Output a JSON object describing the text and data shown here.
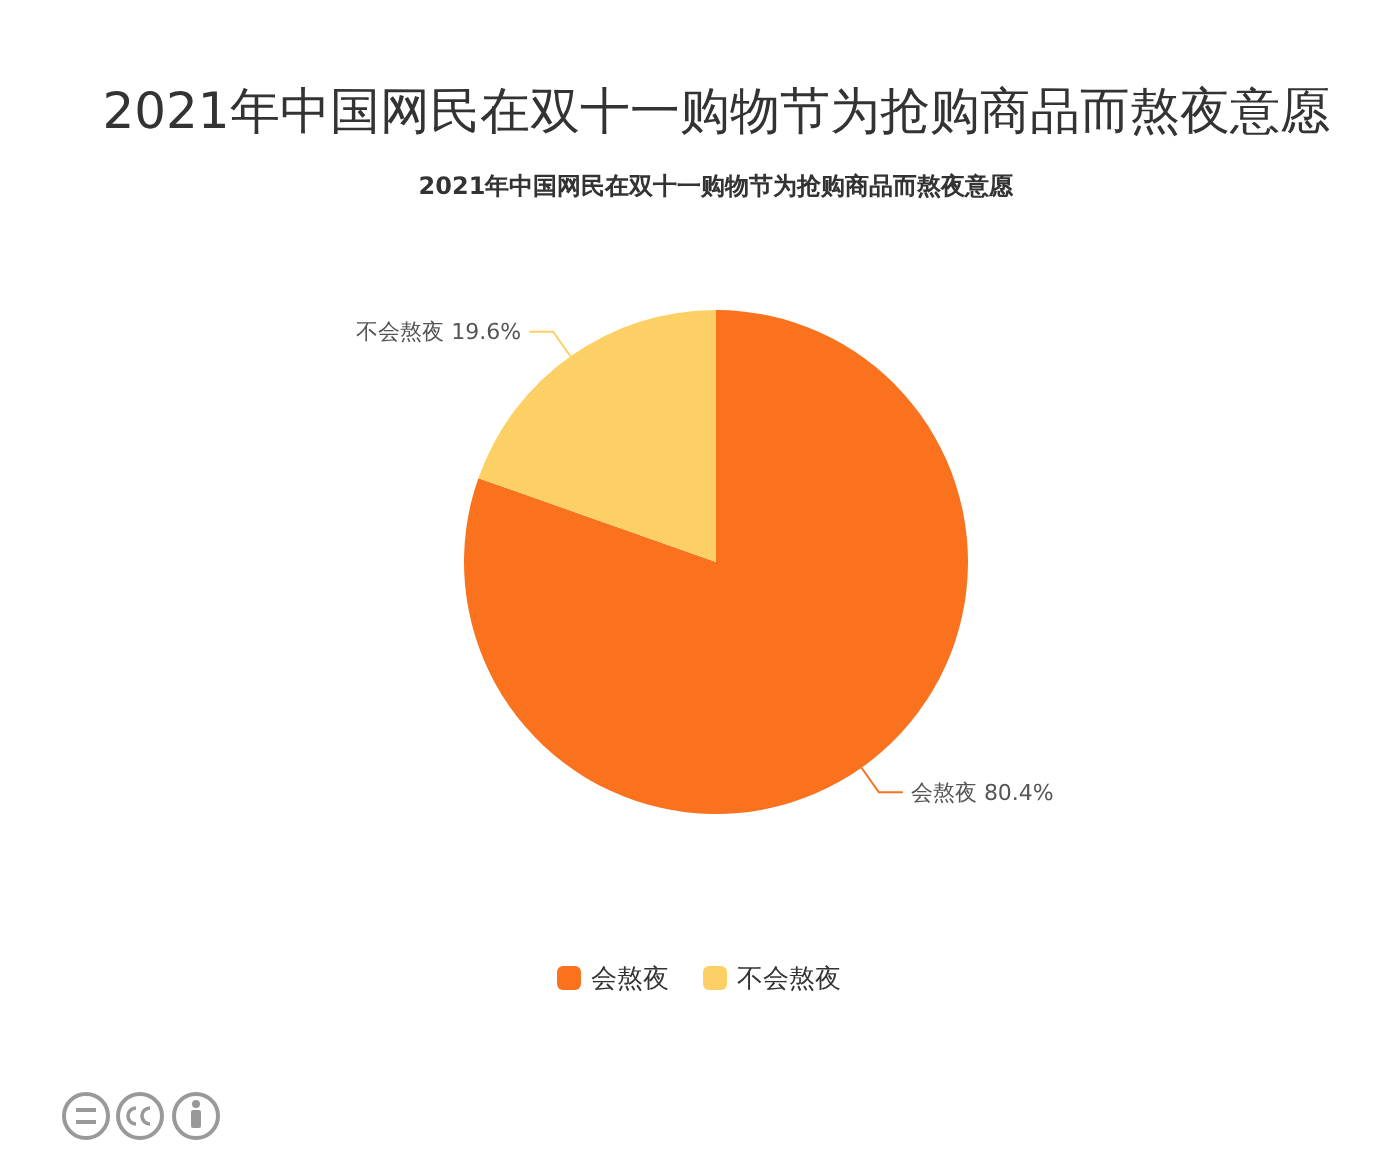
{
  "chart_data": {
    "type": "pie",
    "title": "2021年中国网民在双十一购物节为抢购商品而熬夜意愿",
    "subtitle": "2021年中国网民在双十一购物节为抢购商品而熬夜意愿",
    "categories": [
      "会熬夜",
      "不会熬夜"
    ],
    "values": [
      80.4,
      19.6
    ],
    "colors": [
      "#fa711e",
      "#fdd065"
    ],
    "value_labels": [
      "80.4%",
      "19.6%"
    ],
    "legend": "bottom"
  }
}
